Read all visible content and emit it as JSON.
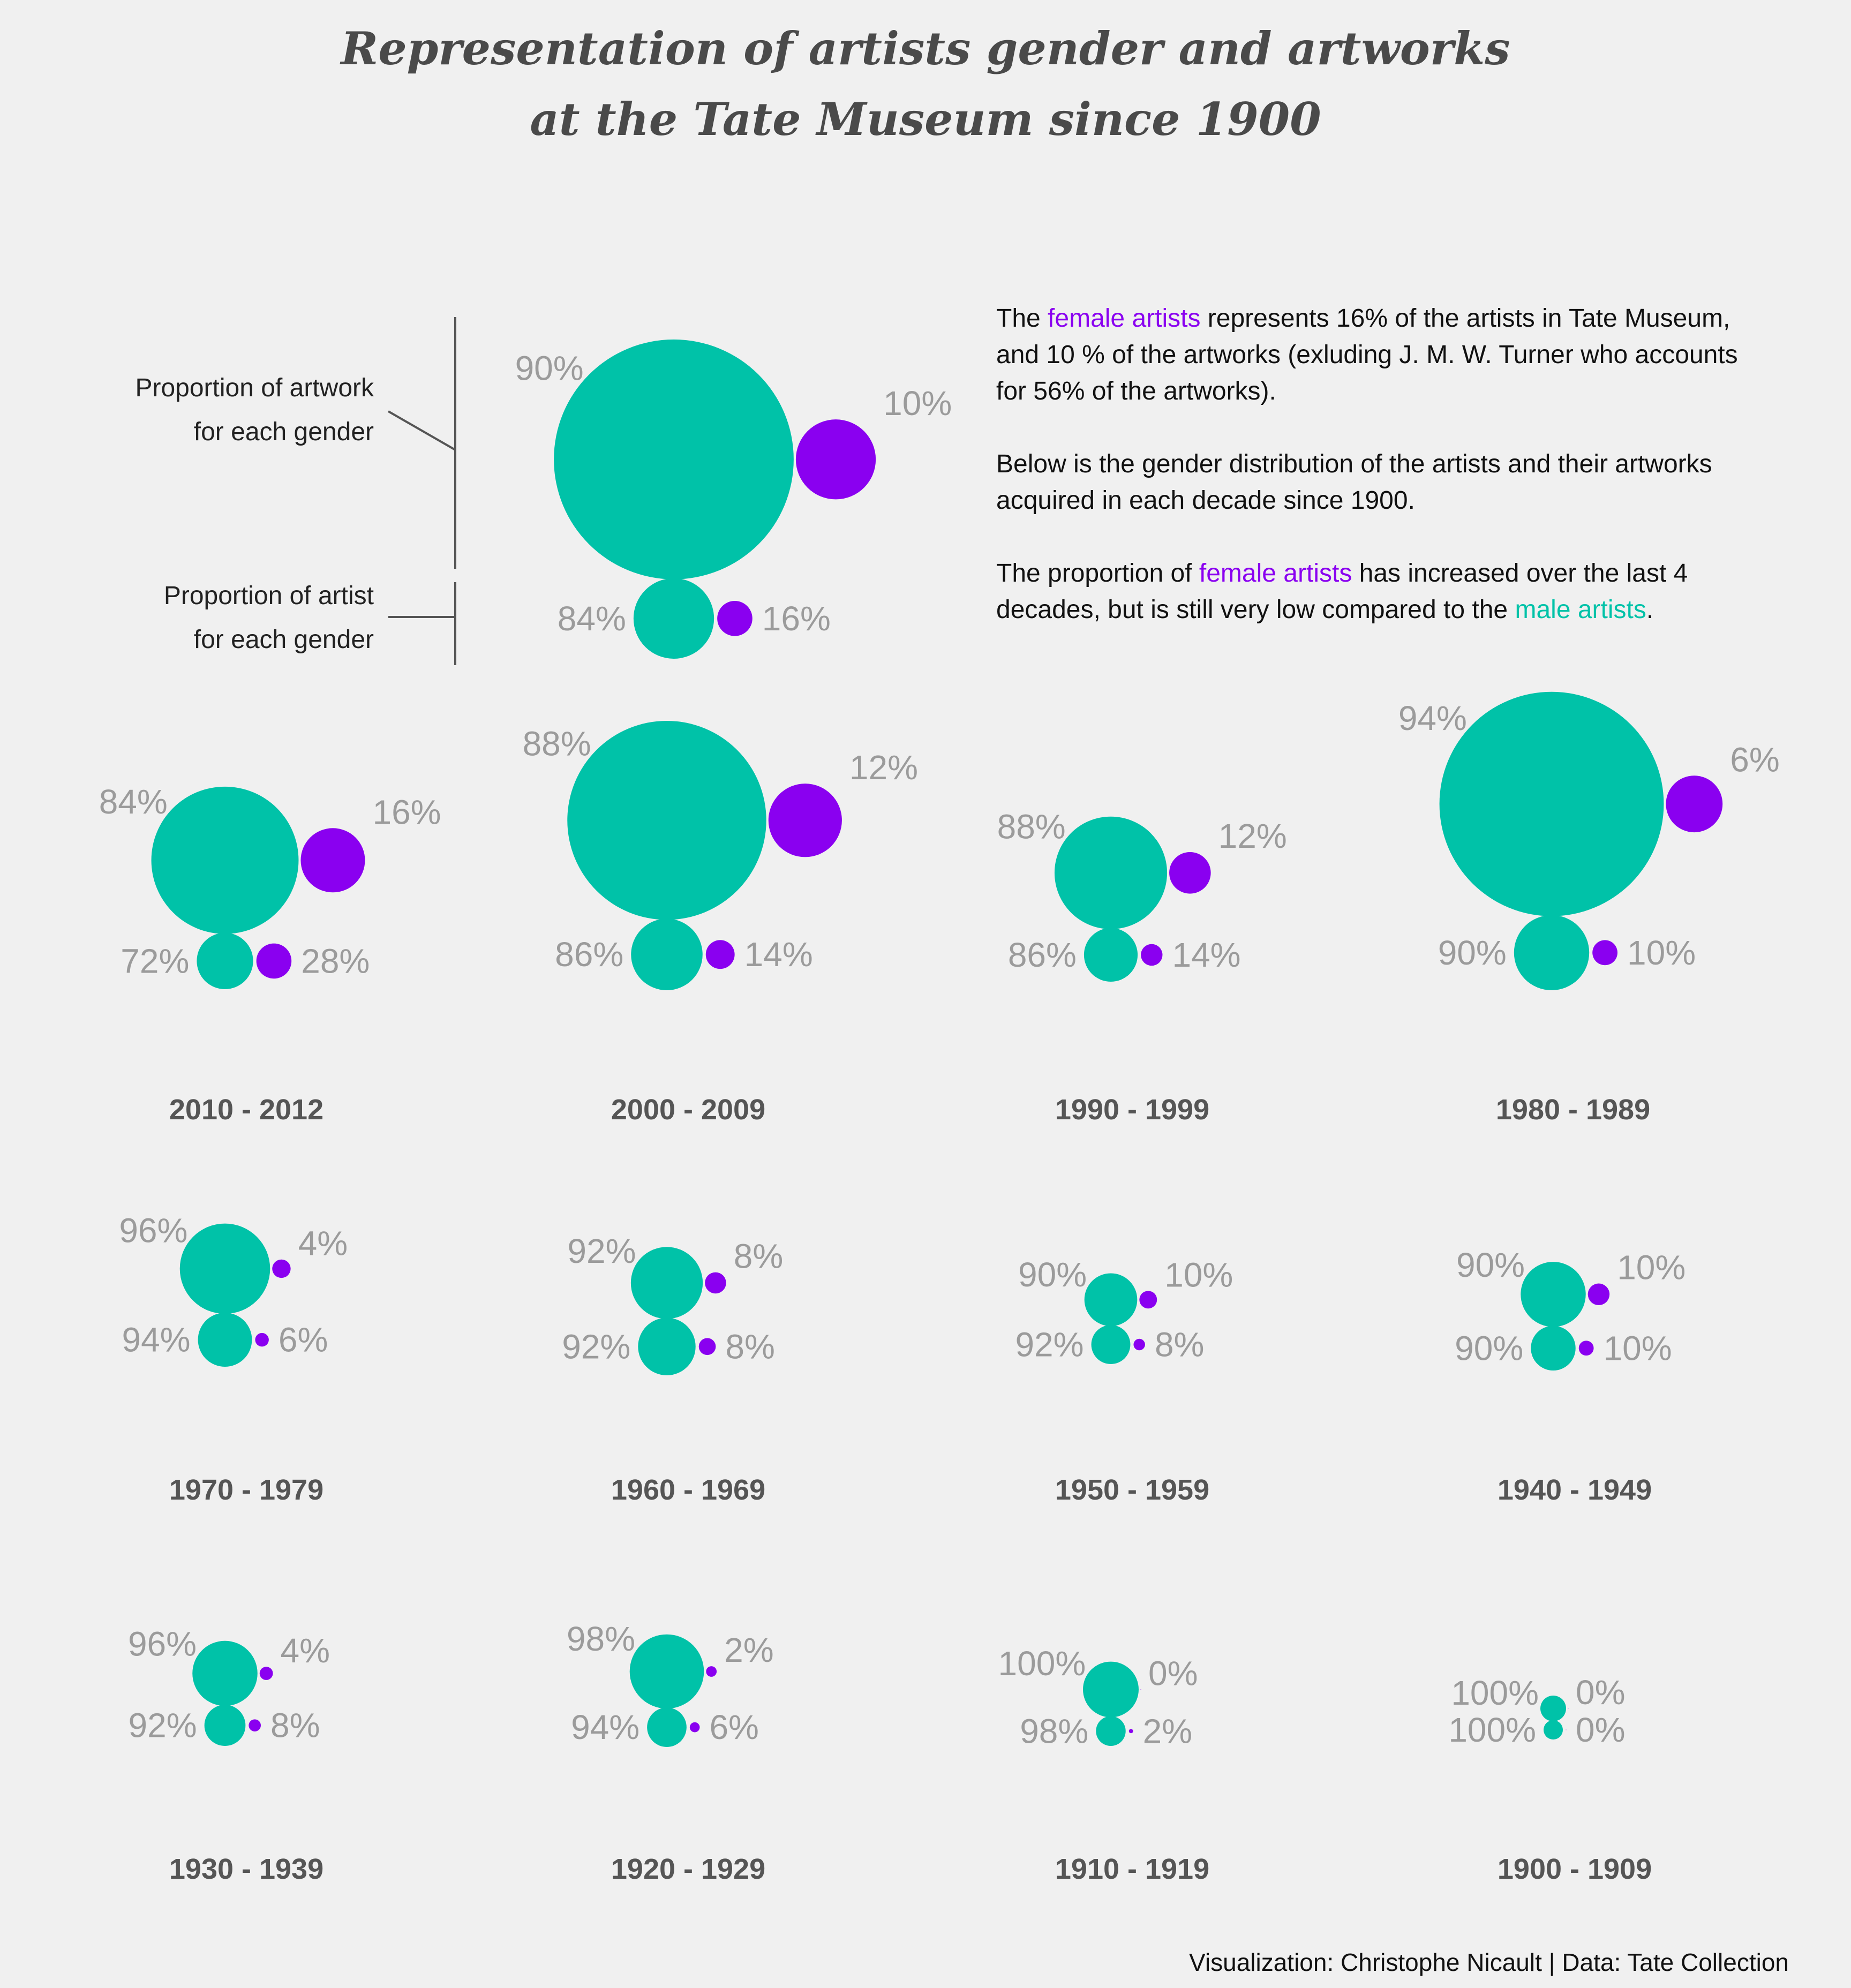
{
  "title": {
    "line1": "Representation of artists gender and artworks",
    "line2": "at the Tate Museum since 1900"
  },
  "legend": {
    "artwork_line1": "Proportion of artwork",
    "artwork_line2": "for each gender",
    "artist_line1": "Proportion of artist",
    "artist_line2": "for each gender"
  },
  "info": {
    "p1_l1_a": "The ",
    "p1_l1_b": "female artists",
    "p1_l1_c": " represents 16% of the artists in Tate Museum,",
    "p1_l2": "and 10 % of the artworks (exluding J. M. W. Turner who accounts",
    "p1_l3": "for 56% of the artworks).",
    "p2_l1": "Below is the gender distribution of the artists and their artworks",
    "p2_l2": "acquired in each decade since 1900.",
    "p3_l1_a": "The proportion of ",
    "p3_l1_b": "female artists",
    "p3_l1_c": " has increased over the last 4",
    "p3_l2_a": "decades, but is still very low compared to the ",
    "p3_l2_b": "male artists",
    "p3_l2_c": "."
  },
  "credit": "Visualization: Christophe Nicault | Data: Tate Collection",
  "colors": {
    "male": "#00c2a8",
    "female": "#8a00f0",
    "background": "#f0f0f0"
  },
  "chart_data": {
    "type": "bubble",
    "description_fields": [
      "artwork_male_pct",
      "artwork_female_pct",
      "artist_male_pct",
      "artist_female_pct"
    ],
    "overall": {
      "artwork": [
        90,
        10
      ],
      "artist": [
        84,
        16
      ]
    },
    "decades": [
      {
        "label": "2010 - 2012",
        "artwork": [
          84,
          16
        ],
        "artist": [
          72,
          28
        ]
      },
      {
        "label": "2000 - 2009",
        "artwork": [
          88,
          12
        ],
        "artist": [
          86,
          14
        ]
      },
      {
        "label": "1990 - 1999",
        "artwork": [
          88,
          12
        ],
        "artist": [
          86,
          14
        ]
      },
      {
        "label": "1980 - 1989",
        "artwork": [
          94,
          6
        ],
        "artist": [
          90,
          10
        ]
      },
      {
        "label": "1970 - 1979",
        "artwork": [
          96,
          4
        ],
        "artist": [
          94,
          6
        ]
      },
      {
        "label": "1960 - 1969",
        "artwork": [
          92,
          8
        ],
        "artist": [
          92,
          8
        ]
      },
      {
        "label": "1950 - 1959",
        "artwork": [
          90,
          10
        ],
        "artist": [
          92,
          8
        ]
      },
      {
        "label": "1940 - 1949",
        "artwork": [
          90,
          10
        ],
        "artist": [
          90,
          10
        ]
      },
      {
        "label": "1930 - 1939",
        "artwork": [
          96,
          4
        ],
        "artist": [
          92,
          8
        ]
      },
      {
        "label": "1920 - 1929",
        "artwork": [
          98,
          2
        ],
        "artist": [
          94,
          6
        ]
      },
      {
        "label": "1910 - 1919",
        "artwork": [
          100,
          0
        ],
        "artist": [
          98,
          2
        ]
      },
      {
        "label": "1900 - 1909",
        "artwork": [
          100,
          0
        ],
        "artist": [
          100,
          0
        ]
      }
    ]
  }
}
